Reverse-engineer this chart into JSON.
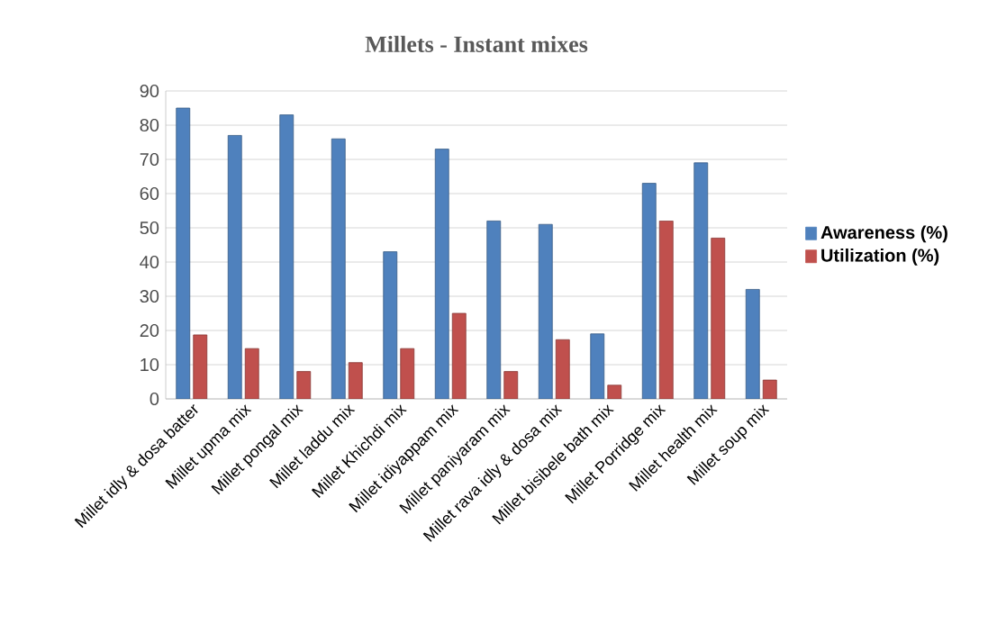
{
  "chart_data": {
    "type": "bar",
    "title": "Millets - Instant mixes",
    "categories": [
      "Millet idly & dosa batter",
      "Millet upma mix",
      "Millet pongal mix",
      "Millet laddu mix",
      "Millet Khichdi mix",
      "Millet idiyappam mix",
      "Millet paniyaram mix",
      "Millet rava idly & dosa mix",
      "Millet bisibele bath mix",
      "Millet Porridge mix",
      "Millet health mix",
      "Millet soup mix"
    ],
    "series": [
      {
        "name": "Awareness (%)",
        "color": "#4f81bd",
        "values": [
          85,
          77,
          83,
          76,
          43,
          73,
          52,
          51,
          19,
          63,
          69,
          32
        ]
      },
      {
        "name": "Utilization (%)",
        "color": "#c0504d",
        "values": [
          18.7,
          14.7,
          8,
          10.6,
          14.7,
          25,
          8,
          17.3,
          4,
          52,
          47,
          5.5
        ]
      }
    ],
    "ylim": [
      0,
      90
    ],
    "yticks": [
      0,
      10,
      20,
      30,
      40,
      50,
      60,
      70,
      80,
      90
    ],
    "grid": "y",
    "legend": "right"
  }
}
